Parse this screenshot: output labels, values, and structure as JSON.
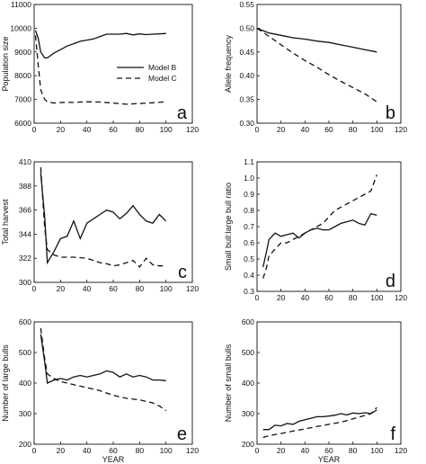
{
  "legend": {
    "entries": [
      {
        "label": "Model B",
        "dash": "solid"
      },
      {
        "label": "Model C",
        "dash": "dashed"
      }
    ]
  },
  "chart_data": [
    {
      "type": "line",
      "panel_letter": "a",
      "xlabel": "",
      "ylabel": "Population size",
      "xlim": [
        0,
        120
      ],
      "ylim": [
        6000,
        11000
      ],
      "xticks": [
        0,
        20,
        40,
        60,
        80,
        100,
        120
      ],
      "yticks": [
        6000,
        7000,
        8000,
        9000,
        10000,
        11000
      ],
      "series": [
        {
          "name": "Model B",
          "dash": "solid",
          "x": [
            1,
            3,
            5,
            8,
            10,
            15,
            20,
            25,
            30,
            35,
            40,
            45,
            50,
            55,
            60,
            65,
            70,
            75,
            80,
            85,
            90,
            95,
            100
          ],
          "y": [
            9900,
            9600,
            9000,
            8750,
            8750,
            8950,
            9100,
            9250,
            9350,
            9450,
            9500,
            9550,
            9650,
            9750,
            9750,
            9750,
            9780,
            9720,
            9760,
            9730,
            9750,
            9760,
            9780
          ]
        },
        {
          "name": "Model C",
          "dash": "dashed",
          "x": [
            1,
            3,
            5,
            8,
            10,
            15,
            20,
            30,
            40,
            50,
            60,
            70,
            80,
            90,
            100
          ],
          "y": [
            9700,
            8500,
            7400,
            7000,
            6900,
            6850,
            6870,
            6880,
            6900,
            6890,
            6850,
            6800,
            6830,
            6860,
            6900
          ]
        }
      ]
    },
    {
      "type": "line",
      "panel_letter": "b",
      "xlabel": "",
      "ylabel": "Allele frequency",
      "xlim": [
        0,
        120
      ],
      "ylim": [
        0.3,
        0.55
      ],
      "xticks": [
        0,
        20,
        40,
        60,
        80,
        100,
        120
      ],
      "yticks": [
        0.3,
        0.35,
        0.4,
        0.45,
        0.5,
        0.55
      ],
      "ytick_labels": [
        "0.30",
        "0.35",
        "0.40",
        "0.45",
        "0.50",
        "0.55"
      ],
      "series": [
        {
          "name": "Model B",
          "dash": "solid",
          "x": [
            0,
            10,
            20,
            30,
            40,
            50,
            60,
            70,
            80,
            90,
            100
          ],
          "y": [
            0.5,
            0.49,
            0.485,
            0.48,
            0.477,
            0.473,
            0.47,
            0.465,
            0.46,
            0.455,
            0.45
          ]
        },
        {
          "name": "Model C",
          "dash": "dashed",
          "x": [
            0,
            10,
            20,
            30,
            40,
            50,
            60,
            70,
            80,
            90,
            100
          ],
          "y": [
            0.5,
            0.483,
            0.465,
            0.448,
            0.432,
            0.418,
            0.402,
            0.388,
            0.375,
            0.362,
            0.345
          ]
        }
      ]
    },
    {
      "type": "line",
      "panel_letter": "c",
      "xlabel": "",
      "ylabel": "Total harvest",
      "xlim": [
        0,
        120
      ],
      "ylim": [
        300,
        410
      ],
      "xticks": [
        0,
        20,
        40,
        60,
        80,
        100,
        120
      ],
      "yticks": [
        300,
        322,
        344,
        366,
        388,
        410
      ],
      "series": [
        {
          "name": "Model B",
          "dash": "solid",
          "x": [
            5,
            8,
            10,
            15,
            20,
            25,
            30,
            35,
            40,
            45,
            50,
            55,
            60,
            65,
            70,
            75,
            80,
            85,
            90,
            95,
            100
          ],
          "y": [
            400,
            360,
            318,
            328,
            340,
            342,
            356,
            340,
            354,
            358,
            362,
            366,
            364,
            358,
            363,
            370,
            362,
            356,
            354,
            362,
            356
          ]
        },
        {
          "name": "Model C",
          "dash": "dashed",
          "x": [
            5,
            8,
            10,
            15,
            20,
            30,
            40,
            50,
            55,
            60,
            65,
            70,
            75,
            80,
            85,
            90,
            95,
            100
          ],
          "y": [
            405,
            350,
            330,
            325,
            323,
            323,
            322,
            318,
            317,
            315,
            316,
            318,
            320,
            314,
            322,
            316,
            315,
            315
          ]
        }
      ]
    },
    {
      "type": "line",
      "panel_letter": "d",
      "xlabel": "",
      "ylabel": "Small bull:large bull ratio",
      "xlim": [
        0,
        120
      ],
      "ylim": [
        0.3,
        1.1
      ],
      "xticks": [
        0,
        20,
        40,
        60,
        80,
        100,
        120
      ],
      "yticks": [
        0.3,
        0.4,
        0.5,
        0.6,
        0.7,
        0.8,
        0.9,
        1.0,
        1.1
      ],
      "ytick_labels": [
        "0.3",
        "0.4",
        "0.5",
        "0.6",
        "0.7",
        "0.8",
        "0.9",
        "1.0",
        "1.1"
      ],
      "series": [
        {
          "name": "Model B",
          "dash": "solid",
          "x": [
            5,
            8,
            10,
            15,
            20,
            25,
            30,
            35,
            40,
            45,
            50,
            55,
            60,
            65,
            70,
            75,
            80,
            85,
            90,
            95,
            100
          ],
          "y": [
            0.45,
            0.55,
            0.62,
            0.66,
            0.64,
            0.65,
            0.66,
            0.63,
            0.66,
            0.68,
            0.69,
            0.68,
            0.68,
            0.7,
            0.72,
            0.73,
            0.74,
            0.72,
            0.71,
            0.78,
            0.77
          ]
        },
        {
          "name": "Model C",
          "dash": "dashed",
          "x": [
            5,
            8,
            10,
            15,
            20,
            25,
            30,
            35,
            40,
            45,
            50,
            55,
            60,
            65,
            70,
            75,
            80,
            85,
            90,
            95,
            100
          ],
          "y": [
            0.38,
            0.45,
            0.52,
            0.56,
            0.6,
            0.6,
            0.62,
            0.64,
            0.66,
            0.68,
            0.7,
            0.72,
            0.76,
            0.8,
            0.82,
            0.84,
            0.86,
            0.88,
            0.9,
            0.92,
            1.02
          ]
        }
      ]
    },
    {
      "type": "line",
      "panel_letter": "e",
      "xlabel": "YEAR",
      "ylabel": "Number of large bulls",
      "xlim": [
        0,
        120
      ],
      "ylim": [
        200,
        600
      ],
      "xticks": [
        0,
        20,
        40,
        60,
        80,
        100,
        120
      ],
      "yticks": [
        200,
        300,
        400,
        500,
        600
      ],
      "series": [
        {
          "name": "Model B",
          "dash": "solid",
          "x": [
            5,
            8,
            10,
            15,
            20,
            25,
            30,
            35,
            40,
            45,
            50,
            55,
            60,
            65,
            70,
            75,
            80,
            85,
            90,
            95,
            100
          ],
          "y": [
            560,
            470,
            400,
            410,
            415,
            410,
            420,
            425,
            420,
            425,
            430,
            440,
            435,
            420,
            430,
            420,
            425,
            420,
            410,
            410,
            408
          ]
        },
        {
          "name": "Model C",
          "dash": "dashed",
          "x": [
            5,
            8,
            10,
            15,
            20,
            30,
            40,
            50,
            60,
            70,
            80,
            90,
            95,
            100
          ],
          "y": [
            580,
            480,
            430,
            415,
            405,
            395,
            385,
            375,
            360,
            350,
            345,
            335,
            325,
            310
          ]
        }
      ]
    },
    {
      "type": "line",
      "panel_letter": "f",
      "xlabel": "YEAR",
      "ylabel": "Number of small bulls",
      "xlim": [
        0,
        120
      ],
      "ylim": [
        200,
        600
      ],
      "xticks": [
        0,
        20,
        40,
        60,
        80,
        100,
        120
      ],
      "yticks": [
        200,
        300,
        400,
        500,
        600
      ],
      "series": [
        {
          "name": "Model B",
          "dash": "solid",
          "x": [
            5,
            10,
            15,
            20,
            25,
            30,
            35,
            40,
            45,
            50,
            55,
            60,
            65,
            70,
            75,
            80,
            85,
            90,
            95,
            100
          ],
          "y": [
            248,
            248,
            262,
            260,
            268,
            265,
            275,
            280,
            285,
            290,
            290,
            292,
            295,
            300,
            296,
            302,
            300,
            303,
            300,
            312
          ]
        },
        {
          "name": "Model C",
          "dash": "dashed",
          "x": [
            5,
            10,
            20,
            30,
            40,
            50,
            60,
            70,
            80,
            90,
            95,
            100
          ],
          "y": [
            222,
            228,
            235,
            243,
            250,
            258,
            265,
            272,
            283,
            294,
            300,
            320
          ]
        }
      ]
    }
  ]
}
